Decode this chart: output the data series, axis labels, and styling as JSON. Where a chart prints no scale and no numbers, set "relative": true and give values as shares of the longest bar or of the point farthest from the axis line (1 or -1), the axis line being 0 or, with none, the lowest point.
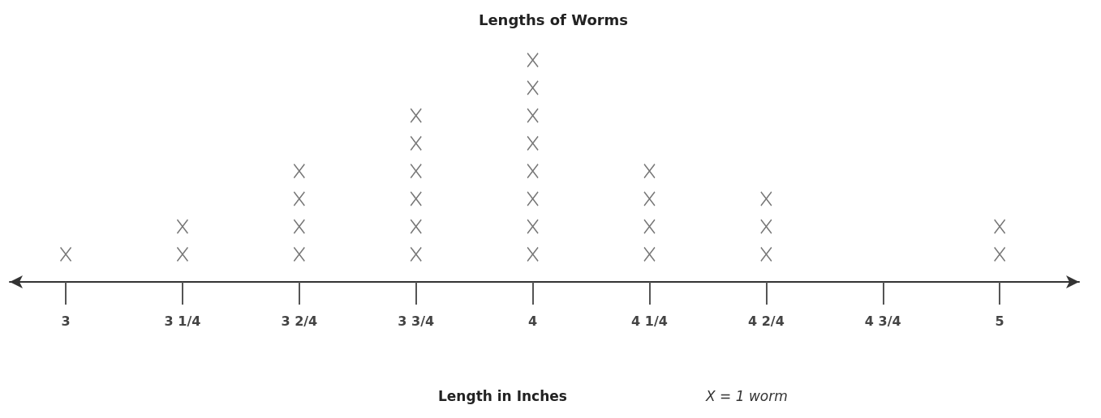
{
  "chart_data": {
    "type": "scatter",
    "title": "Lengths of Worms",
    "xlabel": "Length in Inches",
    "x": [
      3,
      3.25,
      3.25,
      3.5,
      3.5,
      3.5,
      3.5,
      3.75,
      3.75,
      3.75,
      3.75,
      3.75,
      3.75,
      4,
      4,
      4,
      4,
      4,
      4,
      4,
      4,
      4.25,
      4.25,
      4.25,
      4.25,
      4.5,
      4.5,
      4.5,
      5,
      5
    ],
    "values": [
      0.125,
      0.125,
      0.25,
      0.125,
      0.25,
      0.375,
      0.5,
      0.125,
      0.25,
      0.375,
      0.5,
      0.625,
      0.75,
      0.125,
      0.25,
      0.375,
      0.5,
      0.625,
      0.75,
      0.875,
      1,
      0.125,
      0.25,
      0.375,
      0.5,
      0.125,
      0.25,
      0.375,
      0.125,
      0.25
    ],
    "xlim": [
      2.88,
      5.17
    ],
    "xticks": [
      3,
      {
        "value": 3.25,
        "label": "3 1/4"
      },
      {
        "value": 3.5,
        "label": "3 2/4"
      },
      {
        "value": 3.75,
        "label": "3 3/4"
      },
      4,
      {
        "value": 4.25,
        "label": "4 1/4"
      },
      {
        "value": 4.5,
        "label": "4 2/4"
      },
      {
        "value": 4.75,
        "label": "4 3/4"
      },
      5
    ],
    "color": "#555555",
    "marker": "cross",
    "relative": true,
    "annotations": [
      "X = 1 worm"
    ]
  }
}
